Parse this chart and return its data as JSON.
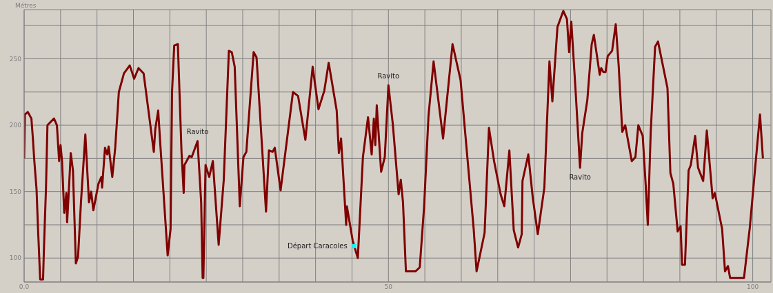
{
  "chart_data": {
    "type": "line",
    "ylabel": "Métres",
    "annotations": [
      {
        "text": "Ravito",
        "x": 23.8,
        "y": 188
      },
      {
        "text": "Ravito",
        "x": 50.0,
        "y": 230
      },
      {
        "text": "Ravito",
        "x": 76.3,
        "y": 168
      },
      {
        "text": "Départ Caracoles",
        "x": 45.3,
        "y": 109
      }
    ],
    "series": [
      {
        "color": "#800000",
        "marker": "none",
        "line_style": "solid",
        "x": [
          0,
          0.1,
          0.5,
          1.0,
          1.2,
          1.4,
          1.7,
          1.9,
          2.2,
          2.6,
          2.7,
          3.0,
          3.2,
          4.1,
          4.5,
          4.8,
          5.0,
          5.2,
          5.5,
          5.8,
          5.9,
          6.1,
          6.4,
          6.7,
          7.1,
          7.4,
          7.8,
          8.4,
          8.9,
          9.2,
          9.5,
          10.2,
          10.6,
          10.7,
          11.1,
          11.4,
          11.6,
          12.1,
          12.5,
          13.0,
          13.7,
          14.5,
          15.1,
          15.7,
          16.4,
          17.8,
          18.0,
          18.4,
          18.7,
          19.7,
          20.1,
          20.3,
          20.6,
          21.1,
          21.6,
          21.9,
          22.0,
          22.7,
          23.0,
          23.8,
          24.3,
          24.5,
          24.6,
          24.9,
          25.4,
          25.9,
          26.7,
          27.4,
          28.1,
          28.5,
          28.9,
          29.6,
          30.1,
          30.5,
          31.5,
          31.9,
          33.2,
          33.6,
          34.1,
          34.4,
          35.2,
          36.9,
          37.6,
          38.6,
          39.6,
          40.4,
          41.2,
          41.8,
          42.9,
          43.2,
          43.5,
          44.2,
          44.3,
          45.1,
          45.8,
          46.5,
          47.2,
          47.7,
          48.0,
          48.2,
          48.4,
          49.0,
          49.5,
          50.0,
          50.6,
          51.4,
          51.7,
          52.0,
          52.4,
          53.7,
          54.3,
          54.9,
          55.5,
          56.2,
          57.5,
          58.8,
          59.9,
          61.7,
          62.1,
          63.2,
          63.8,
          64.5,
          65.4,
          65.9,
          66.6,
          67.2,
          67.8,
          68.3,
          68.4,
          69.2,
          69.8,
          70.5,
          71.4,
          72.1,
          72.5,
          73.2,
          74.0,
          74.5,
          74.8,
          75.1,
          75.7,
          76.3,
          76.6,
          77.3,
          77.9,
          78.2,
          79.0,
          79.2,
          79.5,
          79.8,
          80.1,
          80.7,
          81.2,
          81.6,
          82.1,
          82.5,
          83.4,
          83.9,
          84.3,
          84.9,
          85.3,
          85.6,
          86.0,
          86.6,
          87.0,
          88.3,
          88.7,
          89.1,
          89.7,
          90.1,
          90.3,
          90.7,
          91.2,
          91.5,
          92.1,
          92.5,
          93.2,
          93.7,
          94.5,
          94.8,
          95.8,
          96.2,
          96.6,
          96.9,
          98.8,
          99.6,
          100.6,
          101.0,
          101.4
        ],
        "values": [
          175,
          208,
          210,
          205,
          190,
          173,
          152,
          123,
          84,
          84,
          104,
          153,
          200,
          205,
          200,
          173,
          185,
          173,
          134,
          149,
          127,
          147,
          179,
          166,
          96,
          101,
          142,
          193,
          142,
          150,
          136,
          156,
          161,
          153,
          183,
          178,
          184,
          161,
          183,
          225,
          239,
          245,
          235,
          243,
          239,
          180,
          197,
          211,
          185,
          102,
          122,
          225,
          260,
          261,
          180,
          149,
          170,
          177,
          176,
          188,
          142,
          85,
          85,
          170,
          161,
          173,
          110,
          159,
          256,
          255,
          244,
          139,
          176,
          180,
          255,
          251,
          135,
          181,
          180,
          183,
          151,
          225,
          222,
          189,
          244,
          212,
          226,
          247,
          211,
          179,
          190,
          125,
          139,
          113,
          100,
          176,
          206,
          178,
          205,
          185,
          215,
          165,
          176,
          230,
          201,
          148,
          159,
          142,
          90,
          90,
          93,
          139,
          207,
          248,
          190,
          261,
          234,
          122,
          90,
          119,
          198,
          173,
          148,
          139,
          181,
          121,
          108,
          118,
          158,
          178,
          146,
          118,
          153,
          248,
          218,
          274,
          286,
          280,
          255,
          278,
          225,
          168,
          194,
          219,
          261,
          268,
          238,
          243,
          240,
          240,
          252,
          256,
          276,
          245,
          195,
          200,
          173,
          176,
          200,
          192,
          156,
          125,
          195,
          259,
          263,
          228,
          164,
          156,
          120,
          124,
          95,
          95,
          166,
          170,
          192,
          168,
          158,
          196,
          145,
          149,
          122,
          90,
          94,
          85,
          85,
          123,
          184,
          208,
          175
        ]
      },
      {
        "type": "scatter",
        "color": "#00ffff",
        "marker": "square",
        "x": [
          45.3
        ],
        "values": [
          109
        ]
      }
    ],
    "xlim": [
      0,
      102.5
    ],
    "ylim": [
      82,
      287
    ],
    "xticks": [
      {
        "value": 0,
        "label": "0.0"
      },
      {
        "value": 5,
        "label": null
      },
      {
        "value": 10,
        "label": null
      },
      {
        "value": 15,
        "label": null
      },
      {
        "value": 20,
        "label": null
      },
      {
        "value": 25,
        "label": null
      },
      {
        "value": 30,
        "label": null
      },
      {
        "value": 35,
        "label": null
      },
      {
        "value": 40,
        "label": null
      },
      {
        "value": 45,
        "label": null
      },
      50,
      {
        "value": 55,
        "label": null
      },
      {
        "value": 60,
        "label": null
      },
      {
        "value": 65,
        "label": null
      },
      {
        "value": 70,
        "label": null
      },
      {
        "value": 75,
        "label": null
      },
      {
        "value": 80,
        "label": null
      },
      {
        "value": 85,
        "label": null
      },
      {
        "value": 90,
        "label": null
      },
      {
        "value": 95,
        "label": null
      },
      100
    ],
    "yticks": [
      100,
      {
        "value": 125,
        "label": null
      },
      150,
      {
        "value": 175,
        "label": null
      },
      200,
      {
        "value": 225,
        "label": null
      },
      250,
      {
        "value": 275,
        "label": null
      }
    ],
    "grid": true
  }
}
